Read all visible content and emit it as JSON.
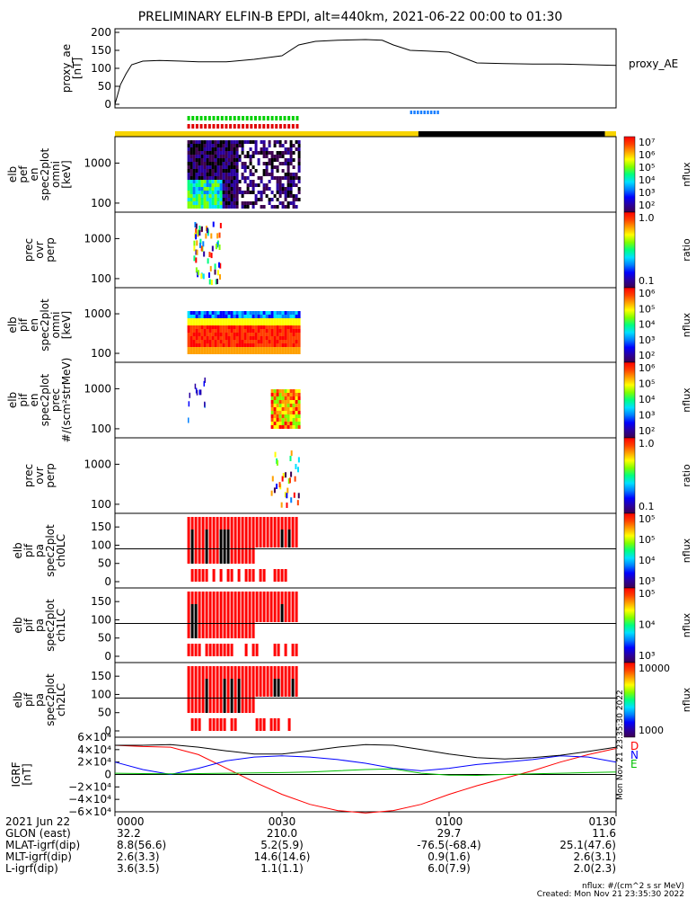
{
  "title": "PRELIMINARY ELFIN-B EPDI, alt=440km, 2021-06-22 00:00 to 01:30",
  "chart_data": [
    {
      "type": "line",
      "id": "proxy_ae",
      "ylabel": [
        "proxy_ae",
        "[nT]"
      ],
      "legend": "proxy_AE",
      "ylim": [
        -10,
        210
      ],
      "yticks": [
        "200",
        "150",
        "100",
        "50",
        "0"
      ],
      "x_minutes": [
        0,
        1,
        2,
        3,
        5,
        8,
        12,
        15,
        20,
        25,
        30,
        33,
        36,
        40,
        45,
        48,
        50,
        53,
        56,
        60,
        65,
        70,
        75,
        80,
        85,
        90
      ],
      "y": [
        0,
        55,
        85,
        110,
        120,
        122,
        120,
        118,
        118,
        125,
        135,
        165,
        175,
        178,
        180,
        178,
        165,
        150,
        148,
        145,
        115,
        113,
        112,
        112,
        110,
        108
      ]
    },
    {
      "type": "heatmap",
      "id": "elb_pef_en_spec2plot_omni",
      "ylabel": [
        "elb",
        "pef",
        "en",
        "spec2plot",
        "omni",
        "[keV]"
      ],
      "yticks": [
        "1000",
        "100"
      ],
      "scale": "log",
      "colorbar": {
        "label": "nflux",
        "ticks": [
          "10⁷",
          "10⁶",
          "10⁵",
          "10⁴",
          "10³",
          "10²"
        ]
      },
      "data_window_minutes": [
        13,
        33
      ]
    },
    {
      "type": "heatmap",
      "id": "prec_ovr_perp_1",
      "ylabel": [
        "prec",
        "ovr",
        "perp"
      ],
      "yticks": [
        "1000",
        "100"
      ],
      "colorbar": {
        "label": "ratio",
        "ticks": [
          "1.0",
          "0.1"
        ]
      },
      "data_window_minutes": [
        13,
        33
      ]
    },
    {
      "type": "heatmap",
      "id": "elb_pif_en_spec2plot_omni",
      "ylabel": [
        "elb",
        "pif",
        "en",
        "spec2plot",
        "omni",
        "[keV]"
      ],
      "yticks": [
        "1000",
        "100"
      ],
      "colorbar": {
        "label": "nflux",
        "ticks": [
          "10⁶",
          "10⁵",
          "10⁴",
          "10³",
          "10²"
        ]
      },
      "data_window_minutes": [
        13,
        33
      ]
    },
    {
      "type": "heatmap",
      "id": "elb_pif_en_spec2plot_prec",
      "ylabel": [
        "elb",
        "pif",
        "en",
        "spec2plot",
        "prec",
        "#/(scm²strMeV)"
      ],
      "yticks": [
        "1000",
        "100"
      ],
      "colorbar": {
        "label": "nflux",
        "ticks": [
          "10⁶",
          "10⁵",
          "10⁴",
          "10³",
          "10²"
        ]
      },
      "data_window_minutes": [
        28,
        33
      ]
    },
    {
      "type": "heatmap",
      "id": "prec_ovr_perp_2",
      "ylabel": [
        "prec",
        "ovr",
        "perp"
      ],
      "yticks": [
        "1000",
        "100"
      ],
      "colorbar": {
        "label": "ratio",
        "ticks": [
          "1.0",
          "0.1"
        ]
      },
      "data_window_minutes": [
        28,
        33
      ]
    },
    {
      "type": "heatmap",
      "id": "elb_pif_pa_ch0LC",
      "ylabel": [
        "elb",
        "pif",
        "pa",
        "spec2plot",
        "ch0LC"
      ],
      "yticks": [
        "150",
        "100",
        "50",
        "0"
      ],
      "colorbar": {
        "label": "nflux",
        "ticks": [
          "10⁵",
          "10⁵",
          "10⁴",
          "10³"
        ]
      },
      "data_window_minutes": [
        13,
        33
      ]
    },
    {
      "type": "heatmap",
      "id": "elb_pif_pa_ch1LC",
      "ylabel": [
        "elb",
        "pif",
        "pa",
        "spec2plot",
        "ch1LC"
      ],
      "yticks": [
        "150",
        "100",
        "50",
        "0"
      ],
      "colorbar": {
        "label": "nflux",
        "ticks": [
          "10⁵",
          "10⁴",
          "10³"
        ]
      },
      "data_window_minutes": [
        13,
        33
      ]
    },
    {
      "type": "heatmap",
      "id": "elb_pif_pa_ch2LC",
      "ylabel": [
        "elb",
        "pif",
        "pa",
        "spec2plot",
        "ch2LC"
      ],
      "yticks": [
        "150",
        "100",
        "50",
        "0"
      ],
      "colorbar": {
        "label": "nflux",
        "ticks": [
          "10000",
          "1000"
        ]
      },
      "data_window_minutes": [
        13,
        33
      ]
    },
    {
      "type": "line",
      "id": "igrf",
      "ylabel": [
        "IGRF",
        "[nT]"
      ],
      "yticks": [
        "6×10⁴",
        "4×10⁴",
        "2×10⁴",
        "0",
        "−2×10⁴",
        "−4×10⁴",
        "−6×10⁴"
      ],
      "ylim": [
        -60000,
        60000
      ],
      "legend": [
        "D",
        "N",
        "E"
      ],
      "x_minutes": [
        0,
        5,
        10,
        15,
        20,
        25,
        30,
        35,
        40,
        45,
        50,
        55,
        60,
        65,
        70,
        75,
        80,
        85,
        90
      ],
      "series": [
        {
          "name": "D",
          "values": [
            47000,
            45000,
            44000,
            32000,
            10000,
            -12000,
            -32000,
            -48000,
            -58000,
            -62000,
            -58000,
            -48000,
            -32000,
            -18000,
            -6000,
            6000,
            20000,
            32000,
            42000
          ]
        },
        {
          "name": "N",
          "values": [
            20000,
            8000,
            0,
            10000,
            22000,
            28000,
            30000,
            28000,
            24000,
            18000,
            10000,
            6000,
            10000,
            16000,
            20000,
            24000,
            30000,
            28000,
            20000
          ]
        },
        {
          "name": "E",
          "values": [
            2000,
            1500,
            1000,
            1500,
            2000,
            2500,
            3000,
            4000,
            6000,
            8000,
            9000,
            2000,
            -1000,
            -1500,
            0,
            1000,
            2000,
            3000,
            4000
          ]
        },
        {
          "name": "total",
          "values": [
            47000,
            47000,
            48000,
            44000,
            38000,
            33000,
            33000,
            38000,
            44000,
            48000,
            47000,
            40000,
            33000,
            27000,
            25000,
            27000,
            31000,
            37000,
            44000
          ]
        }
      ]
    }
  ],
  "orbit_bars": {
    "green_label": "",
    "red_label": "",
    "sunlight_colors": {
      "sun": "#f7d400",
      "shadow": "#000000"
    },
    "blue_dashes_minutes": [
      53,
      58
    ]
  },
  "footer": {
    "rows": [
      {
        "label": "2021 Jun 22",
        "values": [
          "0000",
          "0030",
          "0100",
          "0130"
        ]
      },
      {
        "label": "GLON (east)",
        "values": [
          "32.2",
          "210.0",
          "29.7",
          "11.6"
        ]
      },
      {
        "label": "MLAT-igrf(dip)",
        "values": [
          "8.8(56.6)",
          "5.2(5.9)",
          "-76.5(-68.4)",
          "25.1(47.6)"
        ]
      },
      {
        "label": "MLT-igrf(dip)",
        "values": [
          "2.6(3.3)",
          "14.6(14.6)",
          "0.9(1.6)",
          "2.6(3.1)"
        ]
      },
      {
        "label": "L-igrf(dip)",
        "values": [
          "3.6(3.5)",
          "1.1(1.1)",
          "6.0(7.9)",
          "2.0(2.3)"
        ]
      }
    ],
    "units_note": "nflux: #/(cm^2 s sr MeV)",
    "created": "Created: Mon Nov 21 23:35:30 2022",
    "vertical_stamp": "Mon Nov 21 23:35:30 2022"
  },
  "colors": {
    "rainbow": [
      "#3d0050",
      "#2a00a0",
      "#0000ff",
      "#0080ff",
      "#00e0ff",
      "#00ff80",
      "#80ff00",
      "#ffff00",
      "#ffa000",
      "#ff4000",
      "#ff0000"
    ],
    "D": "#ff0000",
    "N": "#0000ff",
    "E": "#00c000"
  }
}
